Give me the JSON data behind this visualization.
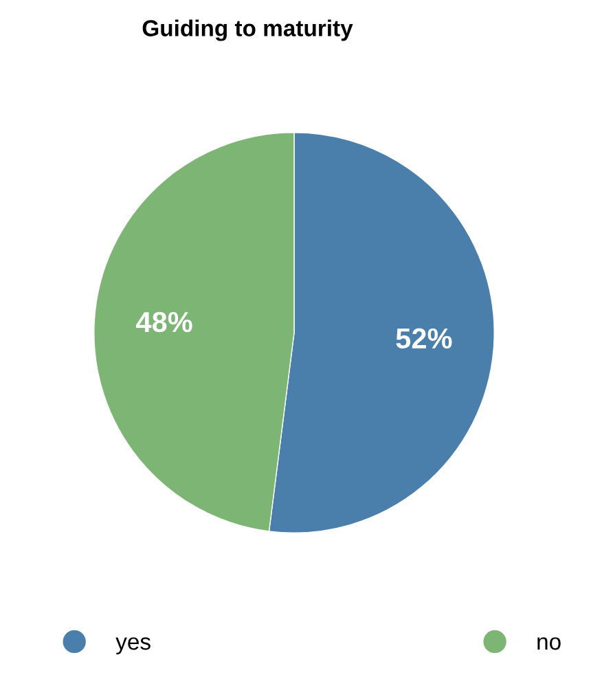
{
  "chart_data": {
    "type": "pie",
    "title": "Guiding to maturity",
    "categories": [
      "yes",
      "no"
    ],
    "values": [
      52,
      48
    ],
    "colors": [
      "#4a7eab",
      "#7db574"
    ],
    "value_labels": [
      "52%",
      "48%"
    ],
    "legend": "bottom"
  }
}
